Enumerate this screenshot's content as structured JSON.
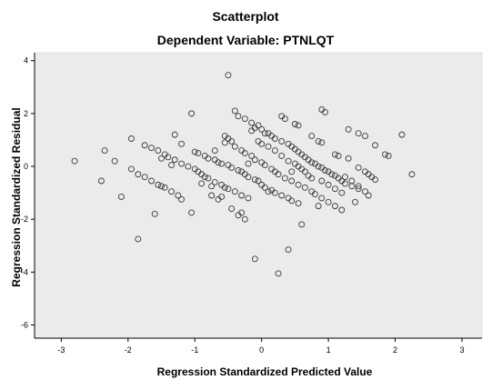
{
  "chart_data": {
    "type": "scatter",
    "title": "Scatterplot",
    "subtitle": "Dependent Variable: PTNLQT",
    "xlabel": "Regression Standardized Predicted Value",
    "ylabel": "Regression Standardized Residual",
    "xlim": [
      -3.4,
      3.3
    ],
    "ylim": [
      -6.5,
      4.3
    ],
    "xticks": [
      -3,
      -2,
      -1,
      0,
      1,
      2,
      3
    ],
    "yticks": [
      4,
      2,
      0,
      -2,
      -4,
      -6
    ],
    "grid": false,
    "legend": "none",
    "colors": {
      "plot_background": "#ebebeb",
      "marker_stroke": "#3a3a3a",
      "axis": "#000000"
    },
    "series": [
      {
        "points": [
          [
            -2.8,
            0.2
          ],
          [
            -2.35,
            0.6
          ],
          [
            -2.4,
            -0.55
          ],
          [
            -2.1,
            -1.15
          ],
          [
            -2.2,
            0.2
          ],
          [
            -1.95,
            1.05
          ],
          [
            -1.85,
            -2.75
          ],
          [
            -1.6,
            -1.8
          ],
          [
            -1.75,
            0.8
          ],
          [
            -1.65,
            0.7
          ],
          [
            -1.55,
            0.6
          ],
          [
            -1.45,
            0.45
          ],
          [
            -1.4,
            0.35
          ],
          [
            -1.3,
            0.25
          ],
          [
            -1.2,
            0.1
          ],
          [
            -1.1,
            0.0
          ],
          [
            -1.0,
            -0.1
          ],
          [
            -0.95,
            -0.2
          ],
          [
            -0.9,
            -0.3
          ],
          [
            -0.85,
            -0.4
          ],
          [
            -0.8,
            -0.45
          ],
          [
            -0.7,
            -0.6
          ],
          [
            -0.6,
            -0.7
          ],
          [
            -0.55,
            -0.8
          ],
          [
            -0.5,
            -0.85
          ],
          [
            -0.4,
            -0.95
          ],
          [
            -0.3,
            -1.1
          ],
          [
            -0.2,
            -1.2
          ],
          [
            -1.95,
            -0.1
          ],
          [
            -1.85,
            -0.3
          ],
          [
            -1.75,
            -0.4
          ],
          [
            -1.65,
            -0.55
          ],
          [
            -1.55,
            -0.7
          ],
          [
            -1.45,
            -0.8
          ],
          [
            -1.35,
            -0.95
          ],
          [
            -1.25,
            -1.1
          ],
          [
            -1.2,
            -1.25
          ],
          [
            -1.3,
            1.2
          ],
          [
            -1.2,
            0.85
          ],
          [
            -1.05,
            -1.75
          ],
          [
            -1.05,
            2.0
          ],
          [
            -0.95,
            0.5
          ],
          [
            -0.85,
            0.4
          ],
          [
            -0.8,
            0.3
          ],
          [
            -0.7,
            0.25
          ],
          [
            -0.65,
            0.15
          ],
          [
            -0.6,
            0.1
          ],
          [
            -0.5,
            0.05
          ],
          [
            -0.45,
            -0.05
          ],
          [
            -0.35,
            -0.15
          ],
          [
            -0.3,
            -0.2
          ],
          [
            -0.25,
            -0.3
          ],
          [
            -0.2,
            -0.4
          ],
          [
            -0.1,
            -0.5
          ],
          [
            -0.05,
            -0.55
          ],
          [
            0.0,
            -0.7
          ],
          [
            0.05,
            -0.8
          ],
          [
            0.15,
            -0.9
          ],
          [
            0.2,
            -1.0
          ],
          [
            0.3,
            -1.1
          ],
          [
            0.4,
            -1.2
          ],
          [
            0.45,
            -1.3
          ],
          [
            0.55,
            -1.4
          ],
          [
            -0.6,
            -1.15
          ],
          [
            -0.65,
            -1.25
          ],
          [
            -0.75,
            -1.1
          ],
          [
            -0.55,
            1.15
          ],
          [
            -0.5,
            1.05
          ],
          [
            -0.45,
            0.95
          ],
          [
            -0.4,
            0.75
          ],
          [
            -0.3,
            0.6
          ],
          [
            -0.25,
            0.5
          ],
          [
            -0.15,
            0.4
          ],
          [
            -0.1,
            0.25
          ],
          [
            0.0,
            0.15
          ],
          [
            0.05,
            0.05
          ],
          [
            0.15,
            -0.1
          ],
          [
            0.2,
            -0.2
          ],
          [
            0.25,
            -0.3
          ],
          [
            0.35,
            -0.45
          ],
          [
            0.45,
            -0.55
          ],
          [
            0.55,
            -0.7
          ],
          [
            0.65,
            -0.8
          ],
          [
            0.75,
            -0.95
          ],
          [
            0.8,
            -1.05
          ],
          [
            0.9,
            -1.2
          ],
          [
            1.0,
            -1.35
          ],
          [
            1.1,
            -1.5
          ],
          [
            1.2,
            -1.65
          ],
          [
            -0.45,
            -1.6
          ],
          [
            -0.35,
            -1.85
          ],
          [
            -0.3,
            -1.75
          ],
          [
            -0.25,
            -2.0
          ],
          [
            -0.1,
            -3.5
          ],
          [
            0.25,
            -4.05
          ],
          [
            0.4,
            -3.15
          ],
          [
            0.6,
            -2.2
          ],
          [
            0.85,
            -1.5
          ],
          [
            -0.5,
            3.45
          ],
          [
            -0.4,
            2.1
          ],
          [
            -0.35,
            1.9
          ],
          [
            -0.25,
            1.8
          ],
          [
            -0.15,
            1.65
          ],
          [
            -0.05,
            1.55
          ],
          [
            0.0,
            1.4
          ],
          [
            0.1,
            1.25
          ],
          [
            0.15,
            1.15
          ],
          [
            0.2,
            1.05
          ],
          [
            0.3,
            0.95
          ],
          [
            0.4,
            0.85
          ],
          [
            0.45,
            0.75
          ],
          [
            0.5,
            0.65
          ],
          [
            0.55,
            0.55
          ],
          [
            0.6,
            0.45
          ],
          [
            0.65,
            0.35
          ],
          [
            0.7,
            0.25
          ],
          [
            0.75,
            0.15
          ],
          [
            0.8,
            0.1
          ],
          [
            0.85,
            0.0
          ],
          [
            0.9,
            -0.05
          ],
          [
            0.95,
            -0.15
          ],
          [
            1.0,
            -0.2
          ],
          [
            1.05,
            -0.3
          ],
          [
            1.1,
            -0.35
          ],
          [
            1.15,
            -0.45
          ],
          [
            1.2,
            -0.55
          ],
          [
            1.25,
            -0.65
          ],
          [
            1.35,
            -0.75
          ],
          [
            1.45,
            -0.85
          ],
          [
            1.55,
            -0.95
          ],
          [
            1.6,
            -1.1
          ],
          [
            0.3,
            1.9
          ],
          [
            0.35,
            1.8
          ],
          [
            0.5,
            1.6
          ],
          [
            0.55,
            1.55
          ],
          [
            0.75,
            1.15
          ],
          [
            0.85,
            0.95
          ],
          [
            0.9,
            0.9
          ],
          [
            1.1,
            0.45
          ],
          [
            1.15,
            0.4
          ],
          [
            0.9,
            2.15
          ],
          [
            0.95,
            2.05
          ],
          [
            1.3,
            1.4
          ],
          [
            1.45,
            1.25
          ],
          [
            1.55,
            1.15
          ],
          [
            1.7,
            0.8
          ],
          [
            1.85,
            0.45
          ],
          [
            1.9,
            0.4
          ],
          [
            2.1,
            1.2
          ],
          [
            2.25,
            -0.3
          ],
          [
            1.45,
            -0.05
          ],
          [
            1.55,
            -0.2
          ],
          [
            1.6,
            -0.3
          ],
          [
            1.65,
            -0.4
          ],
          [
            1.7,
            -0.5
          ],
          [
            1.3,
            0.3
          ],
          [
            1.25,
            -0.4
          ],
          [
            1.35,
            -0.55
          ],
          [
            1.45,
            -0.75
          ],
          [
            1.4,
            -1.35
          ],
          [
            -0.1,
            1.45
          ],
          [
            -0.15,
            1.35
          ],
          [
            0.05,
            1.25
          ],
          [
            0.1,
            -0.95
          ],
          [
            0.3,
            0.4
          ],
          [
            0.4,
            0.2
          ],
          [
            0.5,
            0.1
          ],
          [
            0.55,
            0.0
          ],
          [
            0.6,
            -0.1
          ],
          [
            0.65,
            -0.2
          ],
          [
            0.7,
            -0.35
          ],
          [
            0.75,
            -0.45
          ],
          [
            -1.0,
            0.55
          ],
          [
            -1.35,
            0.05
          ],
          [
            -1.5,
            0.3
          ],
          [
            -0.9,
            -0.65
          ],
          [
            -0.75,
            -0.75
          ],
          [
            -0.7,
            0.6
          ],
          [
            -0.55,
            0.9
          ],
          [
            -1.5,
            -0.75
          ],
          [
            -0.05,
            0.95
          ],
          [
            0.0,
            0.85
          ],
          [
            0.1,
            0.75
          ],
          [
            0.2,
            0.6
          ],
          [
            0.9,
            -0.55
          ],
          [
            1.0,
            -0.7
          ],
          [
            1.1,
            -0.85
          ],
          [
            1.2,
            -1.0
          ],
          [
            0.45,
            -0.2
          ],
          [
            -0.2,
            0.1
          ]
        ]
      }
    ]
  }
}
